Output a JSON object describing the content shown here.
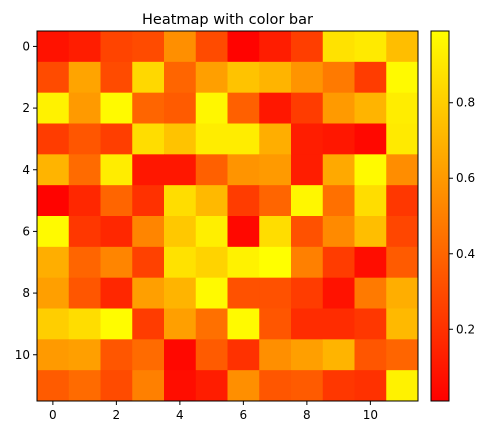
{
  "chart_data": {
    "type": "heatmap",
    "title": "Heatmap with color bar",
    "xlabel": "",
    "ylabel": "",
    "x_ticks": [
      0,
      2,
      4,
      6,
      8,
      10
    ],
    "y_ticks": [
      0,
      2,
      4,
      6,
      8,
      10
    ],
    "colorbar_ticks": [
      0.2,
      0.4,
      0.6,
      0.8
    ],
    "colormap": "autumn",
    "colorbar_range": [
      0.01,
      0.99
    ],
    "colorbar_tick_labels": [
      "0.2",
      "0.4",
      "0.6",
      "0.8"
    ],
    "grid": false,
    "values": [
      [
        0.08,
        0.12,
        0.27,
        0.3,
        0.56,
        0.3,
        0.02,
        0.12,
        0.25,
        0.88,
        0.91,
        0.74
      ],
      [
        0.3,
        0.64,
        0.3,
        0.84,
        0.4,
        0.62,
        0.76,
        0.7,
        0.58,
        0.48,
        0.24,
        0.97
      ],
      [
        0.94,
        0.6,
        0.97,
        0.4,
        0.36,
        0.96,
        0.38,
        0.1,
        0.24,
        0.6,
        0.7,
        0.92
      ],
      [
        0.24,
        0.34,
        0.25,
        0.86,
        0.76,
        0.92,
        0.92,
        0.68,
        0.12,
        0.1,
        0.04,
        0.91
      ],
      [
        0.7,
        0.42,
        0.92,
        0.1,
        0.1,
        0.38,
        0.58,
        0.6,
        0.12,
        0.66,
        0.97,
        0.55
      ],
      [
        0.02,
        0.16,
        0.4,
        0.2,
        0.86,
        0.72,
        0.24,
        0.4,
        0.96,
        0.44,
        0.86,
        0.22
      ],
      [
        0.97,
        0.22,
        0.16,
        0.52,
        0.78,
        0.93,
        0.04,
        0.86,
        0.32,
        0.54,
        0.74,
        0.28
      ],
      [
        0.68,
        0.4,
        0.52,
        0.26,
        0.88,
        0.82,
        0.94,
        0.99,
        0.5,
        0.24,
        0.06,
        0.36
      ],
      [
        0.62,
        0.34,
        0.16,
        0.62,
        0.7,
        0.97,
        0.32,
        0.32,
        0.24,
        0.08,
        0.48,
        0.68
      ],
      [
        0.8,
        0.86,
        0.98,
        0.24,
        0.62,
        0.44,
        0.97,
        0.34,
        0.18,
        0.18,
        0.22,
        0.72
      ],
      [
        0.6,
        0.62,
        0.34,
        0.42,
        0.04,
        0.36,
        0.2,
        0.56,
        0.62,
        0.7,
        0.34,
        0.4
      ],
      [
        0.36,
        0.42,
        0.3,
        0.5,
        0.06,
        0.12,
        0.56,
        0.34,
        0.36,
        0.22,
        0.2,
        0.94
      ]
    ]
  }
}
